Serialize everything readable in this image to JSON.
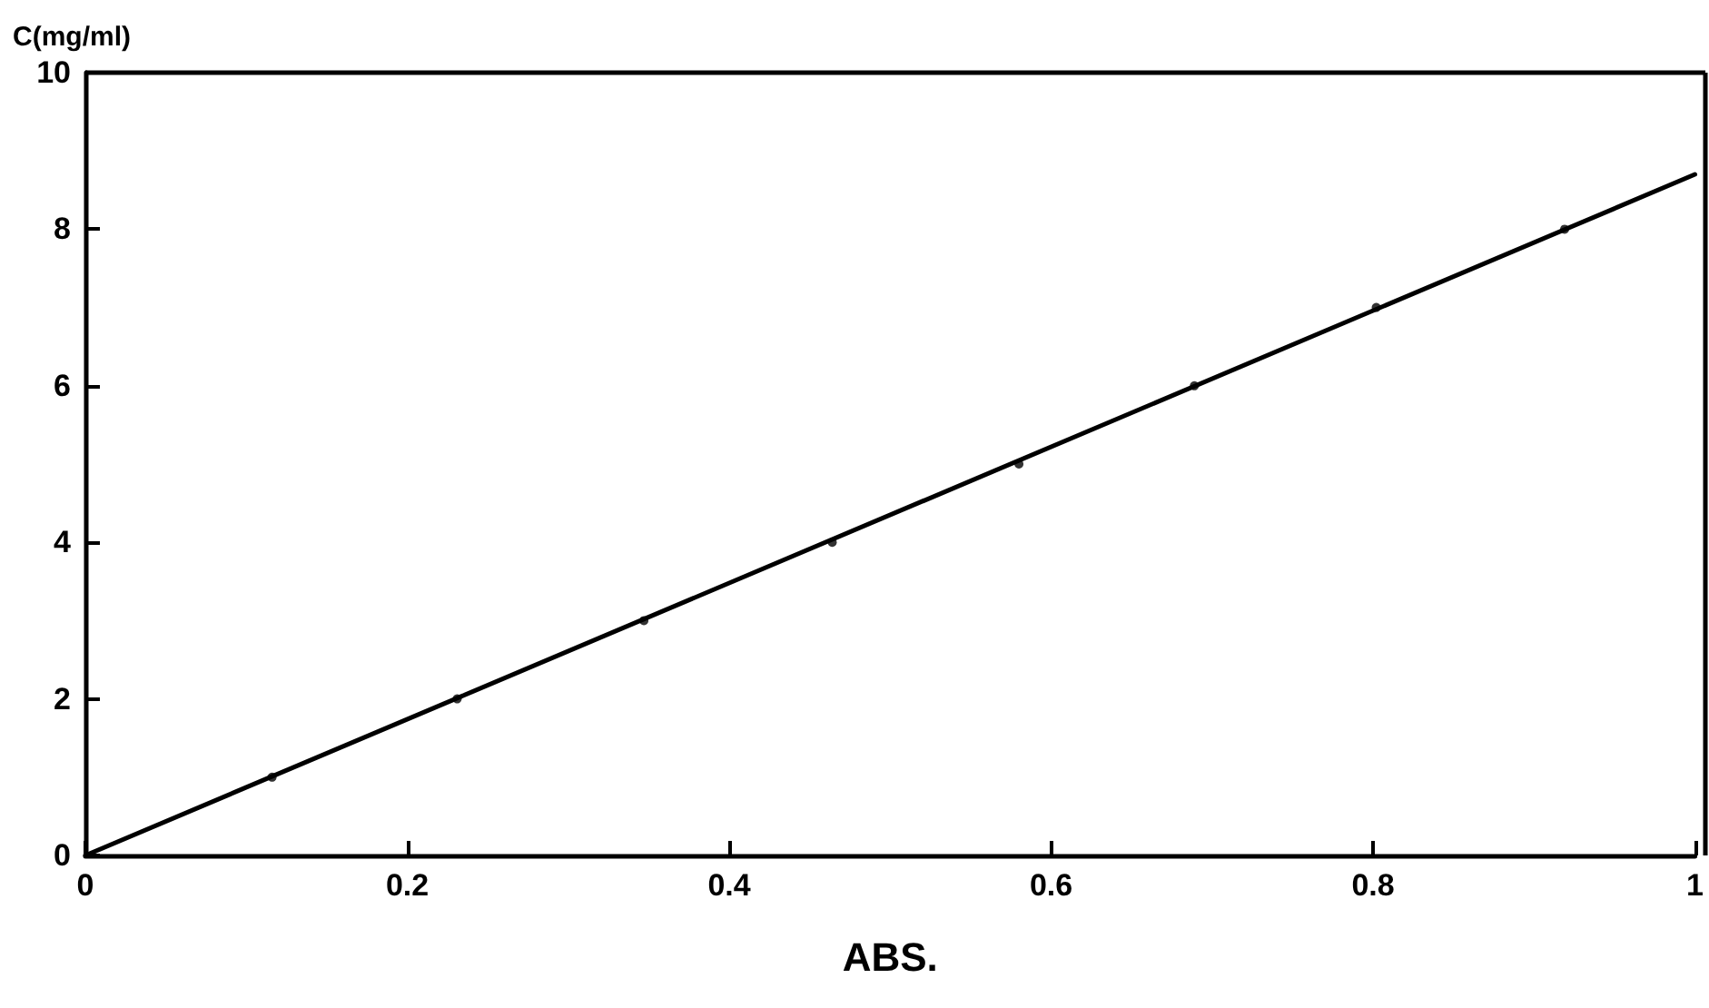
{
  "chart_data": {
    "type": "scatter",
    "xlabel": "ABS.",
    "ylabel": "C(mg/ml)",
    "xlim": [
      0,
      1
    ],
    "ylim": [
      0,
      10
    ],
    "xticks": [
      0,
      0.2,
      0.4,
      0.6,
      0.8,
      1
    ],
    "yticks": [
      0,
      2,
      4,
      6,
      8,
      10
    ],
    "grid": false,
    "marker": "circle",
    "series": [
      {
        "color": "#000000",
        "x": [
          0.116,
          0.231,
          0.347,
          0.464,
          0.58,
          0.689,
          0.802,
          0.919
        ],
        "values": [
          1,
          2,
          3,
          4,
          5,
          6,
          7,
          8
        ]
      },
      {
        "type": "line",
        "color": "#000000",
        "x": [
          0,
          1
        ],
        "values": [
          0,
          8.7
        ],
        "marker": "none",
        "line_style": "solid"
      }
    ]
  }
}
